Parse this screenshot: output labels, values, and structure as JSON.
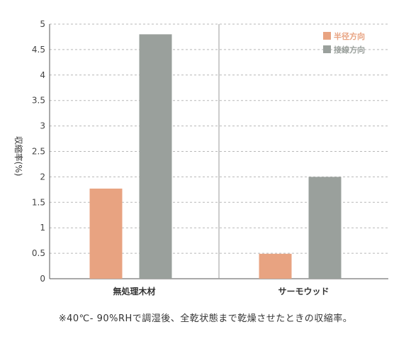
{
  "chart_data": {
    "type": "bar",
    "categories": [
      "無処理木材",
      "サーモウッド"
    ],
    "series": [
      {
        "name": "半径方向",
        "color": "#e8a381",
        "values": [
          1.77,
          0.49
        ]
      },
      {
        "name": "接線方向",
        "color": "#9aa09c",
        "values": [
          4.8,
          2.0
        ]
      }
    ],
    "ylabel": "収縮率(%)",
    "ylim": [
      0,
      5
    ],
    "yticks": [
      "0",
      "0.5",
      "1",
      "1.5",
      "2",
      "2.5",
      "3",
      "3.5",
      "4",
      "4.5",
      "5"
    ],
    "grid": true,
    "legend_position": "top-right",
    "footnote": "※40℃- 90%RHで調湿後、全乾状態まで乾燥させたときの収縮率。"
  }
}
